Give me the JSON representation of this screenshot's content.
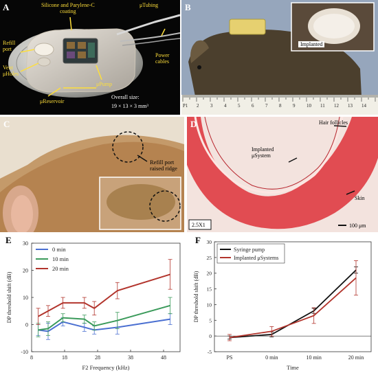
{
  "panelA": {
    "letter": "A",
    "labels": {
      "coating": "Silicone and Parylene-C\ncoating",
      "tubing": "μTubing",
      "refill": "Refill\nport",
      "vent": "Vent\nμHoles",
      "power": "Power\ncables",
      "pump": "μPump",
      "reservoir": "μReservoir",
      "size_title": "Overall size:",
      "size_value": "19 × 13 × 3 mm³"
    }
  },
  "panelB": {
    "letter": "B",
    "inset_label": "Implanted",
    "ruler_numbers": [
      "P1",
      "2",
      "3",
      "4",
      "5",
      "6",
      "7",
      "8",
      "9",
      "10",
      "11",
      "12",
      "13",
      "14"
    ]
  },
  "panelC": {
    "letter": "C",
    "label": "Refill port\nraised ridge"
  },
  "panelD": {
    "letter": "D",
    "hair": "Hair follicles",
    "system": "Implanted\nμSystem",
    "skin": "Skin",
    "mag": "2.5X1",
    "scale": "100 μm"
  },
  "chartE": {
    "letter": "E",
    "chart_data": {
      "type": "line",
      "xlabel": "F2 Frequency (kHz)",
      "ylabel": "DP threshold shift (dB)",
      "x": [
        10,
        13,
        17.5,
        24,
        27,
        34,
        50
      ],
      "xticks": [
        8,
        18,
        28,
        38,
        48
      ],
      "xlim": [
        8,
        53
      ],
      "ylim": [
        -10,
        30
      ],
      "yticks": [
        -10,
        0,
        10,
        20,
        30
      ],
      "legend_position": "top-left",
      "series": [
        {
          "name": "0 min",
          "color": "#4a6fd1",
          "values": [
            -2,
            -2.5,
            1,
            -1,
            -2,
            -1,
            2
          ],
          "errors": [
            2,
            3,
            1.5,
            1.5,
            1.5,
            2.5,
            2
          ]
        },
        {
          "name": "10 min",
          "color": "#3a9a5a",
          "values": [
            -2,
            -1.5,
            2.5,
            2,
            -0.5,
            1.5,
            7
          ],
          "errors": [
            2.5,
            2.5,
            1.5,
            1.5,
            1.5,
            3,
            3
          ]
        },
        {
          "name": "20 min",
          "color": "#b2342c",
          "values": [
            3,
            5,
            8,
            8,
            6,
            12.5,
            18.5
          ],
          "errors": [
            3,
            2,
            2,
            2,
            2.5,
            3,
            5.5
          ]
        }
      ]
    }
  },
  "chartF": {
    "letter": "F",
    "chart_data": {
      "type": "line",
      "xlabel": "Time",
      "ylabel": "DP threshold shift (dB)",
      "categories": [
        "PS",
        "0 min",
        "10 min",
        "20 min"
      ],
      "ylim": [
        -5,
        30
      ],
      "yticks": [
        -5,
        0,
        5,
        10,
        15,
        20,
        25,
        30
      ],
      "legend_position": "top-left",
      "series": [
        {
          "name": "Syringe pump",
          "color": "#111111",
          "values": [
            -0.5,
            0.5,
            8,
            21
          ],
          "errors": [
            0.5,
            0.8,
            0.8,
            1
          ]
        },
        {
          "name": "Implanted μSystems",
          "color": "#b2342c",
          "values": [
            -0.5,
            1.5,
            6.5,
            18.5
          ],
          "errors": [
            1,
            1.5,
            2.5,
            5.5
          ]
        }
      ]
    }
  }
}
